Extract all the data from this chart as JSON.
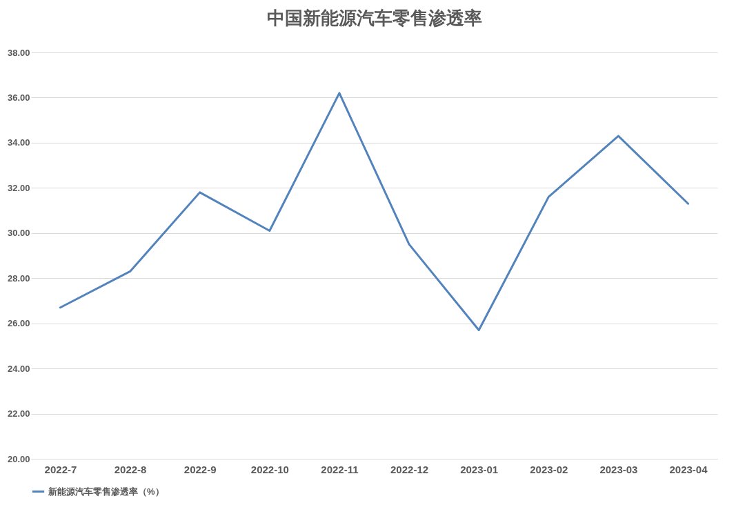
{
  "chart_data": {
    "type": "line",
    "title": "中国新能源汽车零售渗透率",
    "categories": [
      "2022-7",
      "2022-8",
      "2022-9",
      "2022-10",
      "2022-11",
      "2022-12",
      "2023-01",
      "2023-02",
      "2023-03",
      "2023-04"
    ],
    "series": [
      {
        "name": "新能源汽车零售渗透率（%）",
        "color": "#5383bc",
        "values": [
          26.7,
          28.3,
          31.8,
          30.1,
          36.2,
          29.5,
          25.7,
          31.6,
          34.3,
          31.3
        ]
      }
    ],
    "ylim": [
      20,
      38
    ],
    "yticks": [
      {
        "value": 20,
        "label": "20.00"
      },
      {
        "value": 22,
        "label": "22.00"
      },
      {
        "value": 24,
        "label": "24.00"
      },
      {
        "value": 26,
        "label": "26.00"
      },
      {
        "value": 28,
        "label": "28.00"
      },
      {
        "value": 30,
        "label": "30.00"
      },
      {
        "value": 32,
        "label": "32.00"
      },
      {
        "value": 34,
        "label": "34.00"
      },
      {
        "value": 36,
        "label": "36.00"
      },
      {
        "value": 38,
        "label": "38.00"
      }
    ],
    "grid": "y",
    "legend": "bottom",
    "marker": "none",
    "line_style": "solid"
  }
}
